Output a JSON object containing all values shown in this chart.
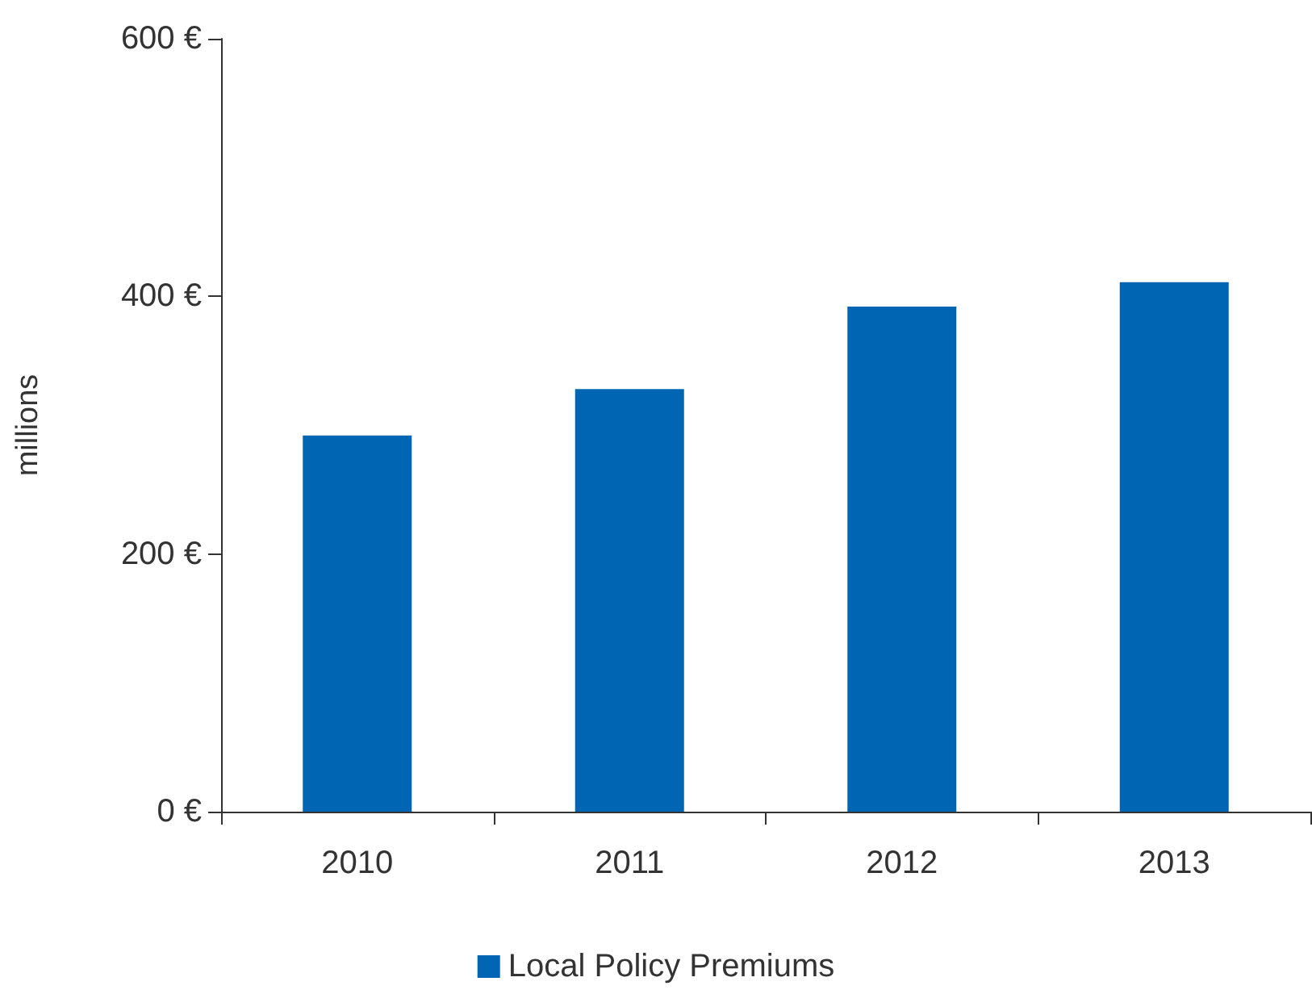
{
  "chart_data": {
    "type": "bar",
    "ylabel": "millions",
    "categories": [
      "2010",
      "2011",
      "2012",
      "2013"
    ],
    "series": [
      {
        "name": "Local Policy Premiums",
        "color": "#0066b3",
        "values": [
          292,
          328,
          392,
          411
        ]
      }
    ],
    "ylim": [
      0,
      600
    ],
    "yticks": [
      {
        "value": 0,
        "label": "0 €"
      },
      {
        "value": 200,
        "label": "200 €"
      },
      {
        "value": 400,
        "label": "400 €"
      },
      {
        "value": 600,
        "label": "600 €"
      }
    ],
    "grid": false,
    "legend": "bottom"
  }
}
